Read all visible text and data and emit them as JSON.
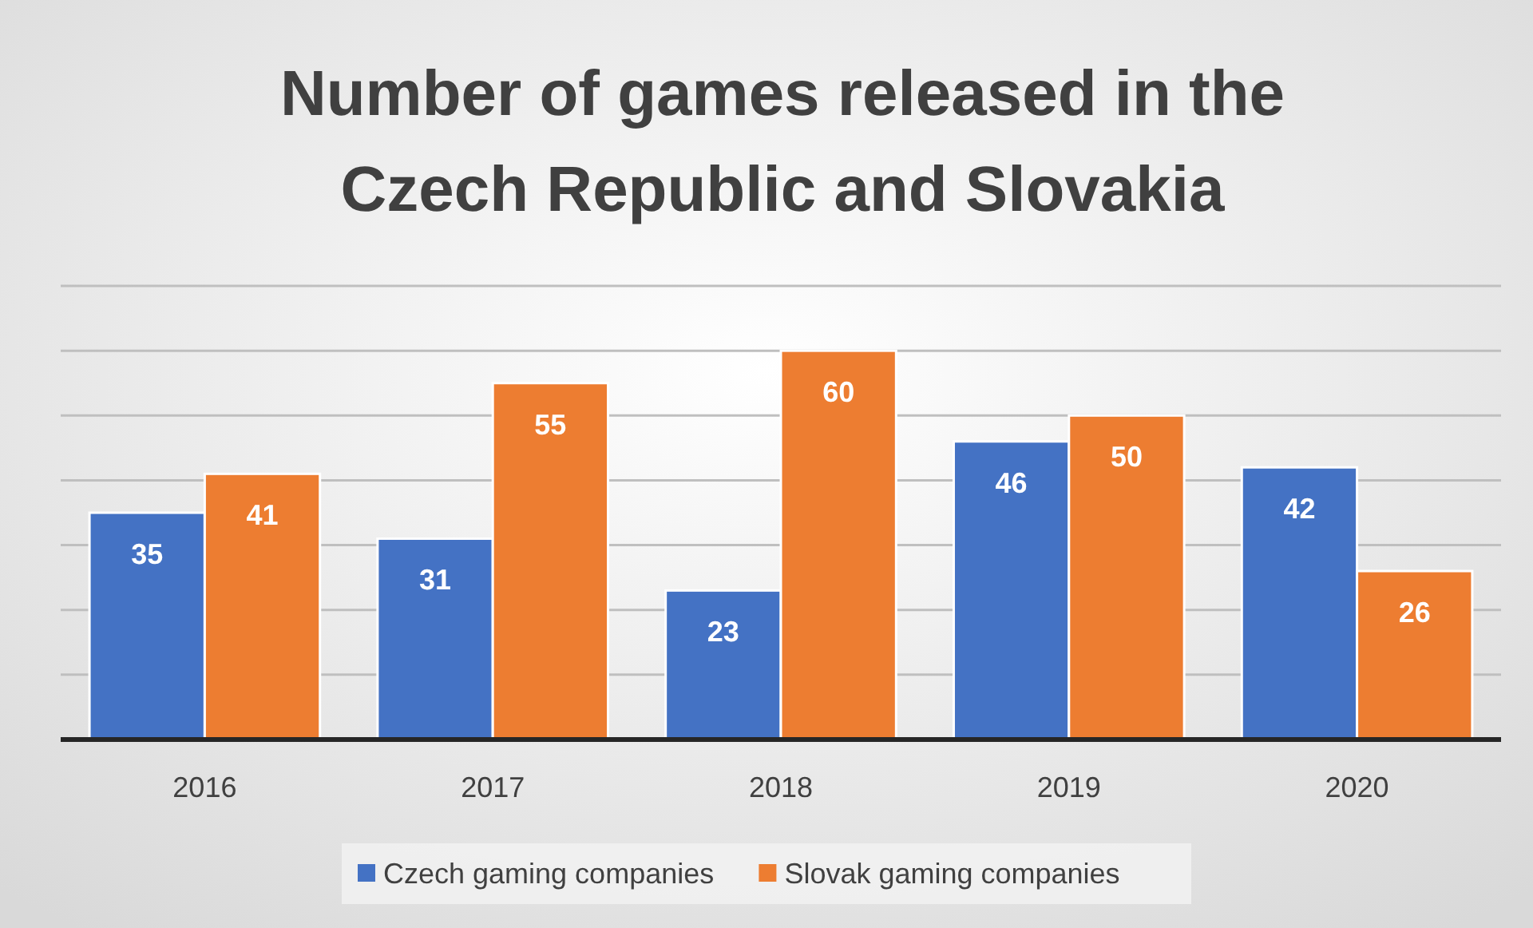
{
  "chart_data": {
    "type": "bar",
    "title": "Number of games released in the Czech Republic and Slovakia",
    "categories": [
      "2016",
      "2017",
      "2018",
      "2019",
      "2020"
    ],
    "series": [
      {
        "name": "Czech gaming companies",
        "color": "#4472c4",
        "values": [
          35,
          31,
          23,
          46,
          42
        ]
      },
      {
        "name": "Slovak gaming companies",
        "color": "#ed7d31",
        "values": [
          41,
          55,
          60,
          50,
          26
        ]
      }
    ],
    "ylim": [
      0,
      70
    ],
    "yticks": [
      {
        "value": 0,
        "label": null
      },
      {
        "value": 10,
        "label": null
      },
      {
        "value": 20,
        "label": null
      },
      {
        "value": 30,
        "label": null
      },
      {
        "value": 40,
        "label": null
      },
      {
        "value": 50,
        "label": null
      },
      {
        "value": 60,
        "label": null
      },
      {
        "value": 70,
        "label": null
      }
    ],
    "grid": "y",
    "data_labels": true,
    "legend": "bottom",
    "tick_labels": "x"
  }
}
